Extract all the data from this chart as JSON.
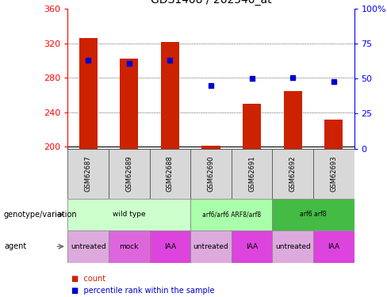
{
  "title": "GDS1408 / 262540_at",
  "samples": [
    "GSM62687",
    "GSM62689",
    "GSM62688",
    "GSM62690",
    "GSM62691",
    "GSM62692",
    "GSM62693"
  ],
  "bar_values": [
    326,
    302,
    322,
    201,
    250,
    265,
    232
  ],
  "bar_base": 198,
  "percentile_values": [
    63,
    61,
    63,
    45,
    50,
    51,
    48
  ],
  "ylim_left": [
    198,
    360
  ],
  "ylim_right": [
    0,
    100
  ],
  "yticks_left": [
    200,
    240,
    280,
    320,
    360
  ],
  "yticks_right": [
    0,
    25,
    50,
    75,
    100
  ],
  "bar_color": "#cc2200",
  "dot_color": "#0000cc",
  "genotype_groups": [
    {
      "label": "wild type",
      "start": 0,
      "end": 3,
      "color": "#ccffcc",
      "border": "#888888"
    },
    {
      "label": "arf6/arf6 ARF8/arf8",
      "start": 3,
      "end": 5,
      "color": "#aaffaa",
      "border": "#888888"
    },
    {
      "label": "arf6 arf8",
      "start": 5,
      "end": 7,
      "color": "#44bb44",
      "border": "#888888"
    }
  ],
  "agent_groups": [
    {
      "label": "untreated",
      "start": 0,
      "end": 1,
      "color": "#ddaadd",
      "border": "#888888"
    },
    {
      "label": "mock",
      "start": 1,
      "end": 2,
      "color": "#dd66dd",
      "border": "#888888"
    },
    {
      "label": "IAA",
      "start": 2,
      "end": 3,
      "color": "#dd44dd",
      "border": "#888888"
    },
    {
      "label": "untreated",
      "start": 3,
      "end": 4,
      "color": "#ddaadd",
      "border": "#888888"
    },
    {
      "label": "IAA",
      "start": 4,
      "end": 5,
      "color": "#dd44dd",
      "border": "#888888"
    },
    {
      "label": "untreated",
      "start": 5,
      "end": 6,
      "color": "#ddaadd",
      "border": "#888888"
    },
    {
      "label": "IAA",
      "start": 6,
      "end": 7,
      "color": "#dd44dd",
      "border": "#888888"
    }
  ],
  "legend_count_color": "#cc2200",
  "legend_dot_color": "#0000cc",
  "background_color": "#ffffff"
}
